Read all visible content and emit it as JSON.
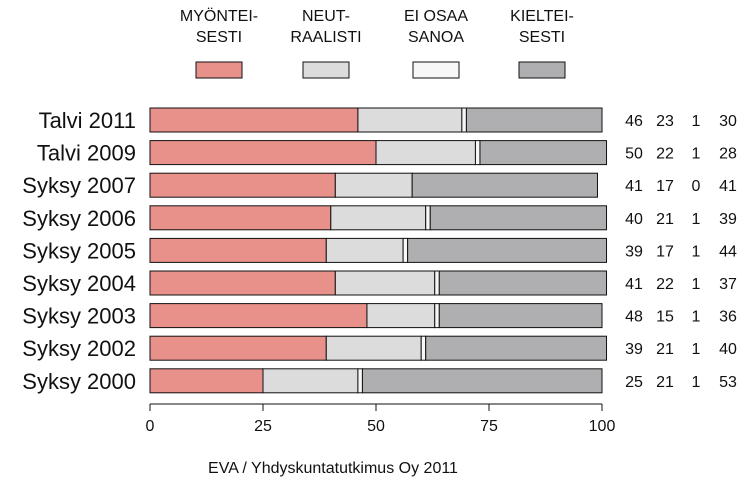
{
  "chart_data": {
    "type": "bar",
    "orientation": "horizontal",
    "stacked": true,
    "categories": [
      "Talvi 2011",
      "Talvi 2009",
      "Syksy 2007",
      "Syksy 2006",
      "Syksy 2005",
      "Syksy 2004",
      "Syksy 2003",
      "Syksy 2002",
      "Syksy 2000"
    ],
    "series": [
      {
        "name": "MYÖNTEI-\nSESTI",
        "color": "#e8908a",
        "values": [
          46,
          50,
          41,
          40,
          39,
          41,
          48,
          39,
          25
        ]
      },
      {
        "name": "NEUT-\nRAALISTI",
        "color": "#dcdcdd",
        "values": [
          23,
          22,
          17,
          21,
          17,
          22,
          15,
          21,
          21
        ]
      },
      {
        "name": "EI OSAA\nSANOA",
        "color": "#f7f7f7",
        "values": [
          1,
          1,
          0,
          1,
          1,
          1,
          1,
          1,
          1
        ]
      },
      {
        "name": "KIELTEI-\nSESTI",
        "color": "#afafb2",
        "values": [
          30,
          28,
          41,
          39,
          44,
          37,
          36,
          40,
          53
        ]
      }
    ],
    "xlim": [
      0,
      100
    ],
    "xticks": [
      0,
      25,
      50,
      75,
      100
    ],
    "legend_position": "top",
    "grid": false,
    "credit": "EVA / Yhdyskuntatutkimus Oy 2011"
  }
}
